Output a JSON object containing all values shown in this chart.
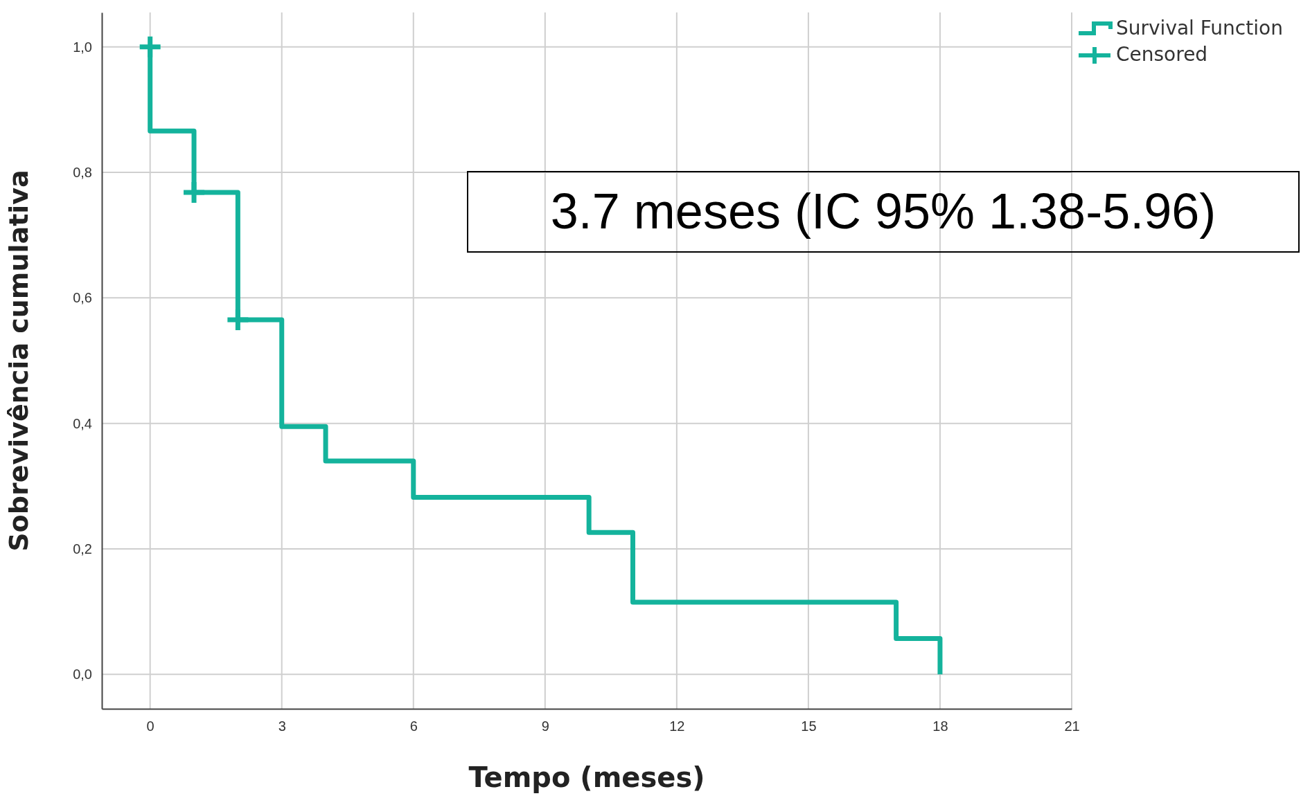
{
  "chart_data": {
    "type": "step",
    "xlabel": "Tempo (meses)",
    "ylabel": "Sobrevivência cumulativa",
    "xlim": [
      -1.1,
      21
    ],
    "xticks": [
      0,
      3,
      6,
      9,
      12,
      15,
      18,
      21
    ],
    "ylim": [
      -0.055,
      1.055
    ],
    "yticks": [
      {
        "value": 0,
        "label": "0,0"
      },
      {
        "value": 0.2,
        "label": "0,2"
      },
      {
        "value": 0.4,
        "label": "0,4"
      },
      {
        "value": 0.6,
        "label": "0,6"
      },
      {
        "value": 0.8,
        "label": "0,8"
      },
      {
        "value": 1,
        "label": "1,0"
      }
    ],
    "grid": true,
    "legend": "top right",
    "line_style": "solid",
    "annotations": [
      "3.7 meses (IC 95% 1.38-5.96)"
    ],
    "series": [
      {
        "name": "Survival Function",
        "color": "#14b39c",
        "x": [
          0,
          0,
          1,
          2,
          3,
          4,
          6,
          10,
          11,
          17,
          18
        ],
        "values": [
          1,
          0.866,
          0.768,
          0.565,
          0.395,
          0.34,
          0.282,
          0.226,
          0.115,
          0.057,
          0
        ]
      },
      {
        "name": "Censored",
        "type": "scatter",
        "marker": "cross",
        "color": "#14b39c",
        "x": [
          0,
          1,
          2
        ],
        "values": [
          1,
          0.768,
          0.565
        ]
      }
    ]
  }
}
